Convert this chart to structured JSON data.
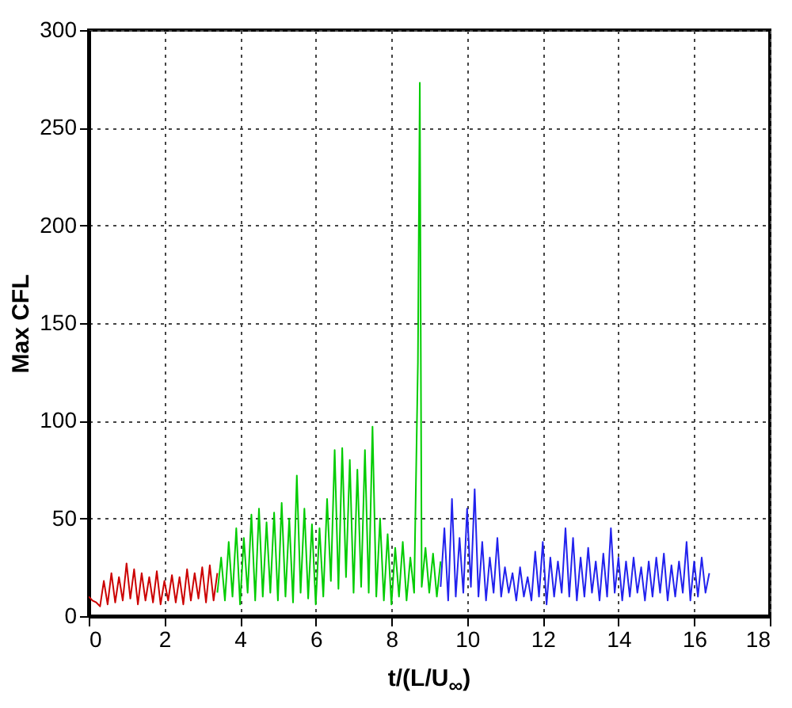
{
  "chart_data": {
    "type": "line",
    "xlabel": "t/(L/U$_{∞}$)",
    "ylabel": "Max CFL",
    "xlim": [
      0,
      18
    ],
    "xticks": [
      0,
      2,
      4,
      6,
      8,
      10,
      12,
      14,
      16,
      18
    ],
    "ylim": [
      0,
      300
    ],
    "yticks": [
      0,
      50,
      100,
      150,
      200,
      250,
      300
    ],
    "grid": true,
    "series": [
      {
        "color": "#cc0000",
        "x": [
          0,
          0.1,
          0.2,
          0.3,
          0.4,
          0.5,
          0.6,
          0.7,
          0.8,
          0.9,
          1.0,
          1.1,
          1.2,
          1.3,
          1.4,
          1.5,
          1.6,
          1.7,
          1.8,
          1.9,
          2.0,
          2.1,
          2.2,
          2.3,
          2.4,
          2.5,
          2.6,
          2.7,
          2.8,
          2.9,
          3.0,
          3.1,
          3.2,
          3.3,
          3.4
        ],
        "values": [
          10,
          8,
          7,
          5,
          18,
          6,
          22,
          7,
          20,
          8,
          27,
          9,
          24,
          6,
          22,
          8,
          20,
          7,
          23,
          6,
          18,
          8,
          21,
          7,
          20,
          6,
          24,
          8,
          22,
          9,
          25,
          7,
          26,
          8,
          22
        ]
      },
      {
        "color": "#00cc00",
        "x": [
          3.4,
          3.5,
          3.6,
          3.7,
          3.8,
          3.9,
          4.0,
          4.1,
          4.2,
          4.3,
          4.4,
          4.5,
          4.6,
          4.7,
          4.8,
          4.9,
          5.0,
          5.1,
          5.2,
          5.3,
          5.4,
          5.5,
          5.6,
          5.7,
          5.8,
          5.9,
          6.0,
          6.1,
          6.2,
          6.3,
          6.4,
          6.5,
          6.6,
          6.7,
          6.8,
          6.9,
          7.0,
          7.1,
          7.2,
          7.3,
          7.4,
          7.5,
          7.6,
          7.7,
          7.8,
          7.9,
          8.0,
          8.1,
          8.2,
          8.3,
          8.4,
          8.5,
          8.6,
          8.7,
          8.75,
          8.8,
          8.9,
          9.0,
          9.1,
          9.2,
          9.3
        ],
        "values": [
          12,
          30,
          8,
          38,
          10,
          45,
          6,
          40,
          12,
          52,
          8,
          55,
          10,
          48,
          12,
          53,
          8,
          58,
          10,
          50,
          7,
          72,
          12,
          55,
          9,
          47,
          6,
          45,
          10,
          60,
          18,
          85,
          14,
          86,
          20,
          80,
          12,
          75,
          15,
          85,
          12,
          97,
          10,
          50,
          8,
          42,
          6,
          35,
          10,
          38,
          8,
          30,
          12,
          130,
          273,
          15,
          35,
          12,
          32,
          10,
          28
        ]
      },
      {
        "color": "#2222ee",
        "x": [
          9.3,
          9.4,
          9.5,
          9.6,
          9.7,
          9.8,
          9.9,
          10.0,
          10.1,
          10.2,
          10.3,
          10.4,
          10.5,
          10.6,
          10.7,
          10.8,
          10.9,
          11.0,
          11.1,
          11.2,
          11.3,
          11.4,
          11.5,
          11.6,
          11.7,
          11.8,
          11.9,
          12.0,
          12.1,
          12.2,
          12.3,
          12.4,
          12.5,
          12.6,
          12.7,
          12.8,
          12.9,
          13.0,
          13.1,
          13.2,
          13.3,
          13.4,
          13.5,
          13.6,
          13.7,
          13.8,
          13.9,
          14.0,
          14.1,
          14.2,
          14.3,
          14.4,
          14.5,
          14.6,
          14.7,
          14.8,
          14.9,
          15.0,
          15.1,
          15.2,
          15.3,
          15.4,
          15.5,
          15.6,
          15.7,
          15.8,
          15.9,
          16.0,
          16.1,
          16.2,
          16.3,
          16.4
        ],
        "values": [
          15,
          45,
          8,
          60,
          10,
          40,
          12,
          55,
          15,
          65,
          10,
          38,
          8,
          30,
          12,
          40,
          10,
          25,
          12,
          22,
          8,
          25,
          10,
          20,
          8,
          33,
          10,
          38,
          6,
          30,
          10,
          28,
          12,
          45,
          10,
          40,
          8,
          30,
          10,
          35,
          12,
          28,
          8,
          32,
          10,
          45,
          12,
          30,
          8,
          28,
          10,
          30,
          12,
          25,
          8,
          28,
          10,
          30,
          12,
          32,
          8,
          26,
          10,
          28,
          12,
          38,
          8,
          28,
          10,
          30,
          12,
          22
        ]
      }
    ]
  }
}
